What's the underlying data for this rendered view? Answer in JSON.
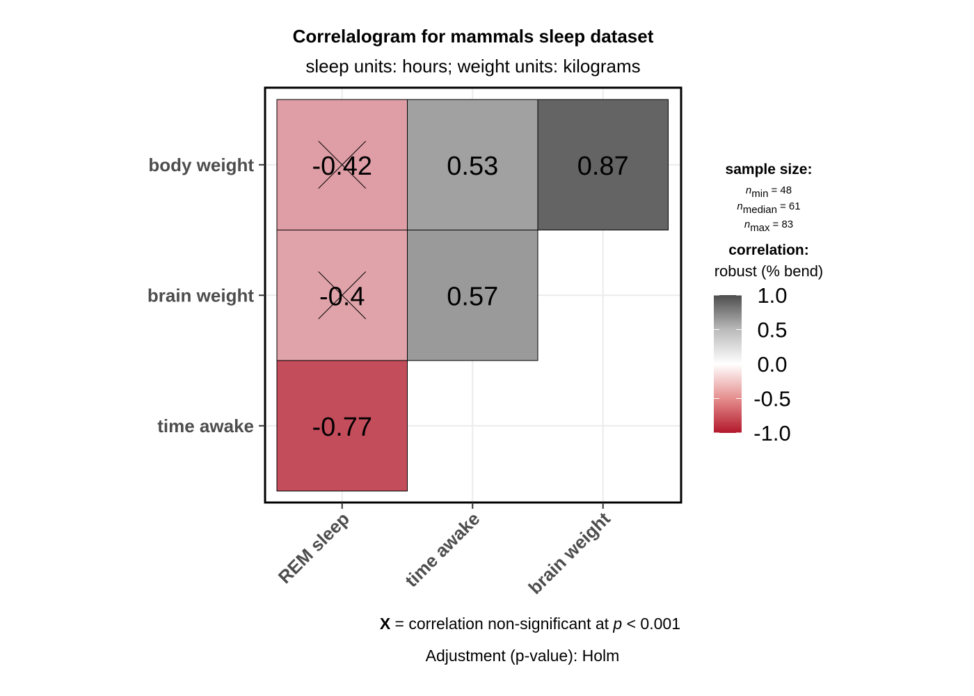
{
  "chart_data": {
    "type": "heatmap",
    "title": "Correlalogram for mammals sleep dataset",
    "subtitle": "sleep units: hours; weight units: kilograms",
    "x_categories": [
      "REM sleep",
      "time awake",
      "brain weight"
    ],
    "y_categories": [
      "body weight",
      "brain weight",
      "time awake"
    ],
    "cells": [
      {
        "x": "REM sleep",
        "y": "body weight",
        "value": -0.42,
        "label": "-0.42",
        "non_significant": true
      },
      {
        "x": "time awake",
        "y": "body weight",
        "value": 0.53,
        "label": "0.53",
        "non_significant": false
      },
      {
        "x": "brain weight",
        "y": "body weight",
        "value": 0.87,
        "label": "0.87",
        "non_significant": false
      },
      {
        "x": "REM sleep",
        "y": "brain weight",
        "value": -0.4,
        "label": "-0.4",
        "non_significant": true
      },
      {
        "x": "time awake",
        "y": "brain weight",
        "value": 0.57,
        "label": "0.57",
        "non_significant": false
      },
      {
        "x": "REM sleep",
        "y": "time awake",
        "value": -0.77,
        "label": "-0.77",
        "non_significant": false
      }
    ],
    "colors": {
      "low": "#b2182b",
      "mid": "#ffffff",
      "high": "#4d4d4d"
    },
    "grid": true,
    "legend": {
      "position": "right",
      "sample_size_title": "sample size:",
      "n_min": {
        "sub": "min",
        "value": "= 48"
      },
      "n_median": {
        "sub": "median",
        "value": "= 61"
      },
      "n_max": {
        "sub": "max",
        "value": "= 83"
      },
      "n_symbol": "n",
      "correlation_title": "correlation:",
      "correlation_type": "robust (% bend)",
      "range": [
        -1,
        1
      ],
      "ticks": [
        1.0,
        0.5,
        0.0,
        -0.5,
        -1.0
      ],
      "tick_labels": [
        "1.0",
        "0.5",
        "0.0",
        "-0.5",
        "-1.0"
      ]
    },
    "caption": {
      "marker": "X",
      "text_before_p": " = correlation non-significant at ",
      "p_symbol": "p",
      "text_after_p": " < 0.001",
      "adjustment": "Adjustment (p-value): Holm"
    }
  }
}
